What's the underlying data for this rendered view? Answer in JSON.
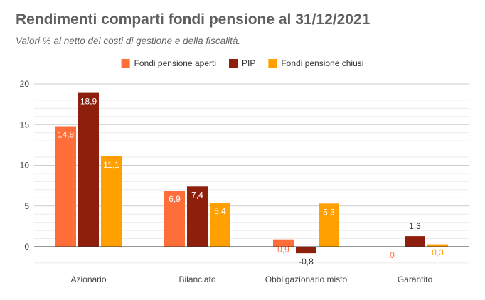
{
  "chart_data": {
    "type": "bar",
    "title": "Rendimenti comparti fondi pensione al 31/12/2021",
    "subtitle": "Valori % al netto dei costi di gestione e della fiscalità.",
    "categories": [
      "Azionario",
      "Bilanciato",
      "Obbligazionario misto",
      "Garantito"
    ],
    "series": [
      {
        "name": "Fondi pensione aperti",
        "color": "#ff6d38",
        "values": [
          14.8,
          6.9,
          0.9,
          0
        ],
        "labels": [
          "14,8",
          "6,9",
          "0,9",
          "0"
        ]
      },
      {
        "name": "PIP",
        "color": "#8e1f0c",
        "values": [
          18.9,
          7.4,
          -0.8,
          1.3
        ],
        "labels": [
          "18,9",
          "7,4",
          "-0,8",
          "1,3"
        ]
      },
      {
        "name": "Fondi pensione chiusi",
        "color": "#ff9f00",
        "values": [
          11.1,
          5.4,
          5.3,
          0.3
        ],
        "labels": [
          "11,1",
          "5,4",
          "5,3",
          "0,3"
        ]
      }
    ],
    "yticks": [
      "0",
      "5",
      "10",
      "15",
      "20"
    ],
    "ylim": [
      -2,
      20
    ],
    "grid": true,
    "legend": "top-center"
  }
}
